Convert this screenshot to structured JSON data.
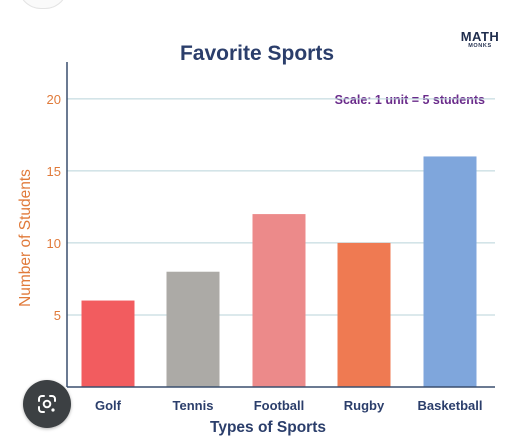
{
  "chart_data": {
    "type": "bar",
    "title": "Favorite Sports",
    "subtitle": "Scale: 1 unit = 5 students",
    "xlabel": "Types of Sports",
    "ylabel": "Number of Students",
    "categories": [
      "Golf",
      "Tennis",
      "Football",
      "Rugby",
      "Basketball"
    ],
    "values": [
      6,
      8,
      12,
      10,
      16
    ],
    "colors": [
      "#f25c5f",
      "#acaaa6",
      "#ec8a8a",
      "#ef7a52",
      "#7fa6dc"
    ],
    "yticks": [
      5,
      10,
      15,
      20
    ],
    "ylim": [
      0,
      22
    ],
    "grid": true,
    "title_color": "#2b3e6b",
    "subtitle_color": "#6a2a8a",
    "axis_label_color": "#e07a3a",
    "tick_label_color": "#e07a3a",
    "category_label_color": "#2b3e6b",
    "grid_color": "#b9d3d9"
  },
  "logo": {
    "main": "MATH",
    "sub": "MONKS"
  },
  "lens_button": {
    "icon": "google-lens-icon"
  }
}
